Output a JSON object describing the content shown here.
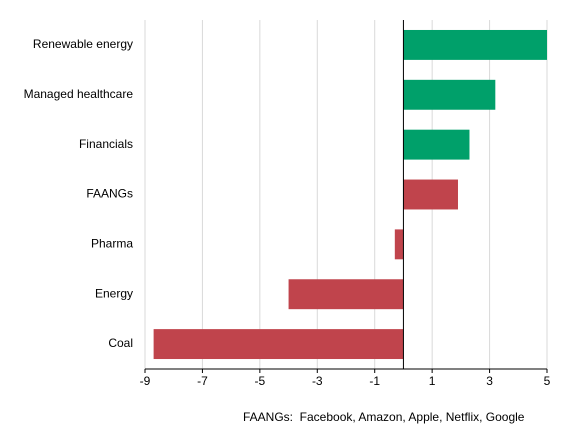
{
  "chart_data": {
    "type": "hbar",
    "categories": [
      "Renewable energy",
      "Managed healthcare",
      "Financials",
      "FAANGs",
      "Pharma",
      "Energy",
      "Coal"
    ],
    "values": [
      5.0,
      3.2,
      2.3,
      1.9,
      -0.3,
      -4.0,
      -8.7
    ],
    "colors": [
      "#00a06a",
      "#00a06a",
      "#00a06a",
      "#c0444c",
      "#c0444c",
      "#c0444c",
      "#c0444c"
    ],
    "xlim": [
      -9,
      5
    ],
    "xticks": [
      -9,
      -7,
      -5,
      -3,
      -1,
      1,
      3,
      5
    ],
    "grid": true,
    "annotation": "FAANGs:  Facebook, Amazon, Apple, Netflix, Google"
  }
}
